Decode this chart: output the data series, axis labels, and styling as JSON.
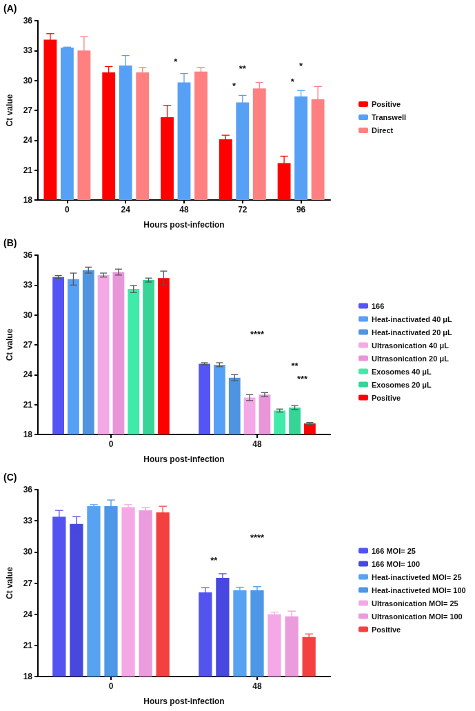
{
  "chart_data": [
    {
      "type": "bar",
      "title": "(A)",
      "xlabel": "Hours post-infection",
      "ylabel": "Ct value",
      "categories": [
        "0",
        "24",
        "48",
        "72",
        "96"
      ],
      "ylim": [
        18,
        36
      ],
      "yticks": [
        18,
        21,
        24,
        27,
        30,
        33,
        36
      ],
      "grid": false,
      "legend": "right",
      "series": [
        {
          "name": "Positive",
          "color": "#ff0000",
          "values": [
            34.1,
            30.8,
            26.3,
            24.1,
            21.7
          ],
          "errors": [
            0.6,
            0.6,
            1.2,
            0.4,
            0.7
          ]
        },
        {
          "name": "Transwell",
          "color": "#56a0f5",
          "values": [
            33.3,
            31.5,
            29.8,
            27.8,
            28.4
          ],
          "errors": [
            0.05,
            1.0,
            0.9,
            0.7,
            0.6
          ]
        },
        {
          "name": "Direct",
          "color": "#ff8080",
          "values": [
            33.0,
            30.8,
            30.9,
            29.2,
            28.1
          ],
          "errors": [
            1.4,
            0.5,
            0.4,
            0.6,
            1.3
          ]
        }
      ],
      "annotations": [
        "*",
        "**",
        "*",
        "*",
        "*"
      ]
    },
    {
      "type": "bar",
      "title": "(B)",
      "xlabel": "Hours post-infection",
      "ylabel": "Ct value",
      "categories": [
        "0",
        "48"
      ],
      "ylim": [
        18,
        36
      ],
      "yticks": [
        18,
        21,
        24,
        27,
        30,
        33,
        36
      ],
      "grid": false,
      "legend": "right",
      "series": [
        {
          "name": "166",
          "color": "#5555f5",
          "values": [
            33.8,
            25.1
          ],
          "errors": [
            0.15,
            0.1
          ]
        },
        {
          "name": "Heat-inactivated 40 μL",
          "color": "#56a0f5",
          "values": [
            33.6,
            25.0
          ],
          "errors": [
            0.6,
            0.2
          ]
        },
        {
          "name": "Heat-inactivated 20 μL",
          "color": "#4f94e0",
          "values": [
            34.5,
            23.7
          ],
          "errors": [
            0.3,
            0.3
          ]
        },
        {
          "name": "Ultrasonication 40 μL",
          "color": "#f5a8e6",
          "values": [
            34.0,
            21.7
          ],
          "errors": [
            0.2,
            0.3
          ]
        },
        {
          "name": "Ultrasonication 20 μL",
          "color": "#e996d8",
          "values": [
            34.3,
            22.0
          ],
          "errors": [
            0.3,
            0.2
          ]
        },
        {
          "name": "Exosomes 40 μL",
          "color": "#40eaa8",
          "values": [
            32.6,
            20.4
          ],
          "errors": [
            0.35,
            0.15
          ]
        },
        {
          "name": "Exosomes 20 μL",
          "color": "#36d496",
          "values": [
            33.5,
            20.7
          ],
          "errors": [
            0.2,
            0.2
          ]
        },
        {
          "name": "Positive",
          "color": "#ff0000",
          "values": [
            33.7,
            19.1
          ],
          "errors": [
            0.7,
            0.1
          ]
        }
      ],
      "annotations": [
        "****",
        "**",
        "***"
      ]
    },
    {
      "type": "bar",
      "title": "(C)",
      "xlabel": "Hours post-infection",
      "ylabel": "Ct value",
      "categories": [
        "0",
        "48"
      ],
      "ylim": [
        18,
        36
      ],
      "yticks": [
        18,
        21,
        24,
        27,
        30,
        33,
        36
      ],
      "grid": false,
      "legend": "right",
      "series": [
        {
          "name": "166 MOI= 25",
          "color": "#5353f0",
          "values": [
            33.4,
            26.1
          ],
          "errors": [
            0.6,
            0.45
          ]
        },
        {
          "name": "166 MOI= 100",
          "color": "#4848e0",
          "values": [
            32.7,
            27.5
          ],
          "errors": [
            0.7,
            0.4
          ]
        },
        {
          "name": "Heat-inactiveted MOI= 25",
          "color": "#58a2f2",
          "values": [
            34.4,
            26.3
          ],
          "errors": [
            0.15,
            0.3
          ]
        },
        {
          "name": "Heat-inactiveted MOI= 100",
          "color": "#4e96e6",
          "values": [
            34.4,
            26.3
          ],
          "errors": [
            0.6,
            0.35
          ]
        },
        {
          "name": "Ultrasonication MOI= 25",
          "color": "#f5a8e6",
          "values": [
            34.3,
            24.0
          ],
          "errors": [
            0.25,
            0.2
          ]
        },
        {
          "name": "Ultrasonication MOI= 100",
          "color": "#eb9cdc",
          "values": [
            34.0,
            23.8
          ],
          "errors": [
            0.25,
            0.5
          ]
        },
        {
          "name": "Positive",
          "color": "#f54040",
          "values": [
            33.8,
            21.8
          ],
          "errors": [
            0.6,
            0.3
          ]
        }
      ],
      "annotations": [
        "****",
        "**"
      ]
    }
  ]
}
